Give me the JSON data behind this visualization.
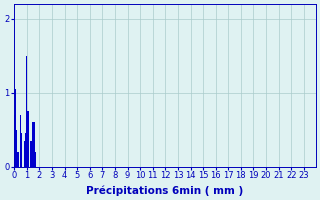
{
  "values": [
    0.7,
    1.05,
    0.5,
    0.2,
    0.0,
    0.7,
    0.45,
    0.0,
    0.35,
    0.45,
    1.5,
    0.75,
    0.0,
    0.35,
    0.35,
    0.6,
    0.6,
    0.2,
    0,
    0,
    0,
    0,
    0,
    0,
    0,
    0,
    0,
    0,
    0,
    0,
    0,
    0,
    0,
    0,
    0,
    0,
    0,
    0,
    0,
    0,
    0,
    0,
    0,
    0,
    0,
    0,
    0,
    0,
    0,
    0,
    0,
    0,
    0,
    0,
    0,
    0,
    0,
    0,
    0,
    0,
    0,
    0,
    0,
    0,
    0,
    0,
    0,
    0,
    0,
    0,
    0,
    0,
    0,
    0,
    0,
    0,
    0,
    0,
    0,
    0,
    0,
    0,
    0,
    0,
    0,
    0,
    0,
    0,
    0,
    0,
    0,
    0,
    0,
    0,
    0,
    0,
    0,
    0,
    0,
    0,
    0,
    0,
    0,
    0,
    0,
    0,
    0,
    0,
    0,
    0,
    0,
    0,
    0,
    0,
    0,
    0,
    0,
    0,
    0,
    0,
    0,
    0,
    0,
    0,
    0,
    0,
    0,
    0,
    0,
    0,
    0,
    0,
    0,
    0,
    0,
    0,
    0,
    0,
    0,
    0,
    0,
    0,
    0,
    0,
    0,
    0,
    0,
    0,
    0,
    0,
    0,
    0,
    0,
    0,
    0,
    0,
    0,
    0,
    0,
    0,
    0,
    0,
    0,
    0,
    0,
    0,
    0,
    0,
    0,
    0,
    0,
    0,
    0,
    0,
    0,
    0,
    0,
    0,
    0,
    0,
    0,
    0,
    0,
    0,
    0,
    0,
    0,
    0,
    0,
    0,
    0,
    0,
    0,
    0,
    0,
    0,
    0,
    0,
    0,
    0,
    0,
    0,
    0,
    0,
    0,
    0,
    0,
    0,
    0,
    0,
    0,
    0,
    0,
    0,
    0,
    0,
    0,
    0,
    0,
    0,
    0,
    0,
    0,
    0,
    0,
    0,
    0,
    0,
    0,
    0,
    0,
    0,
    0,
    0,
    0,
    0,
    0,
    0,
    0,
    0
  ],
  "num_bars": 240,
  "bar_color": "#0000cc",
  "bg_color": "#dff2f2",
  "grid_color": "#aacccc",
  "axis_color": "#0000bb",
  "xlabel": "Précipitations 6min ( mm )",
  "ylim": [
    0,
    2.2
  ],
  "yticks": [
    0,
    1,
    2
  ],
  "hour_labels": [
    "0",
    "1",
    "2",
    "3",
    "4",
    "5",
    "6",
    "7",
    "8",
    "9",
    "10",
    "11",
    "12",
    "13",
    "14",
    "15",
    "16",
    "17",
    "18",
    "19",
    "20",
    "21",
    "22",
    "23"
  ],
  "xlabel_fontsize": 7.5,
  "tick_fontsize": 6
}
